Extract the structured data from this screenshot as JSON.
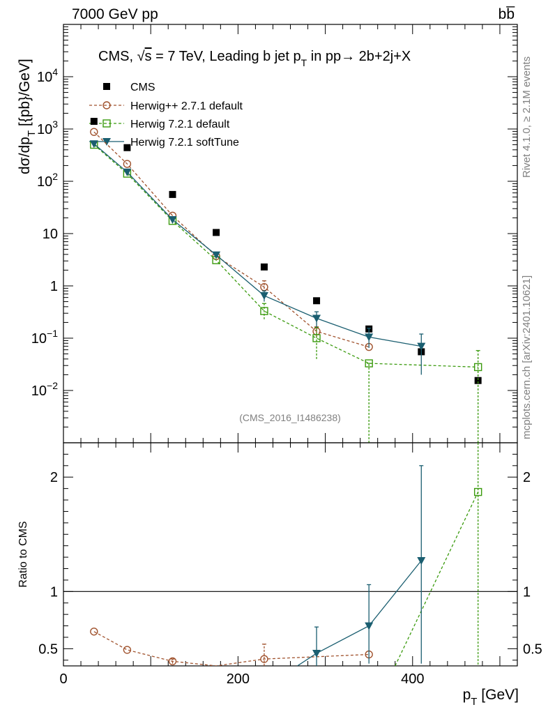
{
  "header": {
    "left": "7000 GeV pp",
    "right": "bb̅"
  },
  "side_labels": {
    "rivet": "Rivet 4.1.0, ≥ 2.1M events",
    "mcplots": "mcplots.cern.ch [arXiv:2401.10621]"
  },
  "chart_data": [
    {
      "type": "scatter",
      "panel": "main",
      "title": "CMS, √s = 7 TeV, Leading b jet p_T in pp→ 2b+2j+X",
      "title_parts": {
        "a": "CMS, ",
        "sqrt": "√",
        "s": "s",
        "b": " = 7 TeV, Leading b jet p",
        "sub": "T",
        "c": " in pp→  2b+2j+X"
      },
      "ylabel": "dσ/dp_T [{pb}/GeV]",
      "ylabel_parts": {
        "a": "dσ/dp",
        "sub": "T",
        "b": "  [{pb}/GeV]"
      },
      "yscale": "log",
      "xlim": [
        0,
        520
      ],
      "ylim": [
        0.001,
        100000
      ],
      "ytick_labels": [
        {
          "value": 0.01,
          "base": "10",
          "exp": "−2"
        },
        {
          "value": 0.1,
          "base": "10",
          "exp": "−1"
        },
        {
          "value": 1,
          "base": "1",
          "exp": ""
        },
        {
          "value": 10,
          "base": "10",
          "exp": ""
        },
        {
          "value": 100,
          "base": "10",
          "exp": "2"
        },
        {
          "value": 1000,
          "base": "10",
          "exp": "3"
        },
        {
          "value": 10000,
          "base": "10",
          "exp": "4"
        }
      ],
      "watermark": "(CMS_2016_I1486238)",
      "legend_position": "top-left",
      "series": [
        {
          "name": "CMS",
          "style": "data",
          "color": "#000000",
          "x": [
            35,
            73,
            125,
            175,
            230,
            290,
            350,
            410,
            475
          ],
          "y": [
            1400,
            440,
            56,
            10.5,
            2.3,
            0.52,
            0.15,
            0.055,
            0.0155
          ],
          "err_lo": [
            0,
            0,
            0,
            0,
            0,
            0,
            0,
            0,
            0
          ],
          "err_hi": [
            0,
            0,
            0,
            0,
            0,
            0,
            0,
            0,
            0
          ]
        },
        {
          "name": "Herwig++ 2.7.1 default",
          "style": "dashed",
          "marker": "circle-open",
          "color": "#a0522d",
          "x": [
            35,
            73,
            125,
            175,
            230,
            290,
            350
          ],
          "y": [
            880,
            215,
            22,
            3.7,
            0.95,
            0.135,
            0.068
          ],
          "err_lo": [
            0,
            0,
            0,
            0,
            0.2,
            0.03,
            0
          ],
          "err_hi": [
            0,
            0,
            0,
            0,
            0.3,
            0.03,
            0
          ]
        },
        {
          "name": "Herwig 7.2.1 default",
          "style": "dashed",
          "marker": "square-open",
          "color": "#3a9a0d",
          "x": [
            35,
            73,
            125,
            175,
            230,
            290,
            350,
            475
          ],
          "y": [
            500,
            140,
            17.5,
            3.1,
            0.33,
            0.1,
            0.033,
            0.028
          ],
          "err_lo": [
            0,
            0,
            0,
            0,
            0.1,
            0.06,
            0.032,
            0.027
          ],
          "err_hi": [
            0,
            0,
            0,
            0,
            0.13,
            0.06,
            0.0,
            0.03
          ]
        },
        {
          "name": "Herwig 7.2.1 softTune",
          "style": "solid",
          "marker": "triangle-down",
          "color": "#1a5e70",
          "x": [
            35,
            73,
            125,
            175,
            230,
            290,
            350,
            410
          ],
          "y": [
            520,
            150,
            18.5,
            3.9,
            0.65,
            0.24,
            0.105,
            0.07
          ],
          "err_lo": [
            0,
            0,
            0,
            0,
            0.15,
            0.08,
            0.04,
            0.05
          ],
          "err_hi": [
            0,
            0,
            0,
            0,
            0.15,
            0.08,
            0.05,
            0.05
          ]
        }
      ]
    },
    {
      "type": "line",
      "panel": "ratio",
      "ylabel": "Ratio to CMS",
      "xlabel": "p_T [GeV]",
      "xlabel_parts": {
        "a": "p",
        "sub": "T",
        "b": " [GeV]"
      },
      "xlim": [
        0,
        520
      ],
      "ylim": [
        0.35,
        2.3
      ],
      "xtick_labels": [
        {
          "value": 0,
          "label": "0"
        },
        {
          "value": 200,
          "label": "200"
        },
        {
          "value": 400,
          "label": "400"
        }
      ],
      "ytick_labels": [
        {
          "value": 0.5,
          "label": "0.5"
        },
        {
          "value": 1,
          "label": "1"
        },
        {
          "value": 2,
          "label": "2"
        }
      ],
      "reference_line": 1,
      "series": [
        {
          "name": "Herwig++ 2.7.1 default",
          "style": "dashed",
          "marker": "circle-open",
          "color": "#a0522d",
          "x": [
            35,
            73,
            125,
            175,
            230,
            350
          ],
          "y": [
            0.65,
            0.49,
            0.39,
            0.35,
            0.41,
            0.45
          ],
          "err_lo": [
            0,
            0,
            0.02,
            0,
            0.09,
            0
          ],
          "err_hi": [
            0,
            0,
            0.02,
            0,
            0.13,
            0
          ],
          "draw_marker": [
            true,
            true,
            true,
            false,
            true,
            true
          ],
          "err_x": [
            230
          ],
          "err_y_lo": [
            0.32
          ],
          "err_y_hi": [
            0.54
          ]
        },
        {
          "name": "Herwig 7.2.1 default",
          "style": "dashed",
          "marker": "square-open",
          "color": "#3a9a0d",
          "x": [
            380,
            475
          ],
          "y": [
            0.35,
            1.87
          ],
          "err_lo": [
            0,
            1.6
          ],
          "err_hi": [
            0,
            0.6
          ],
          "draw_marker": [
            false,
            true
          ]
        },
        {
          "name": "Herwig 7.2.1 softTune",
          "style": "solid",
          "marker": "triangle-down",
          "color": "#1a5e70",
          "x": [
            268,
            290,
            350,
            410
          ],
          "y": [
            0.35,
            0.46,
            0.7,
            1.27
          ],
          "err_lo": [
            0,
            0.13,
            0.33,
            0.9
          ],
          "err_hi": [
            0,
            0.23,
            0.36,
            0.83
          ],
          "draw_marker": [
            false,
            true,
            true,
            true
          ]
        }
      ]
    }
  ]
}
